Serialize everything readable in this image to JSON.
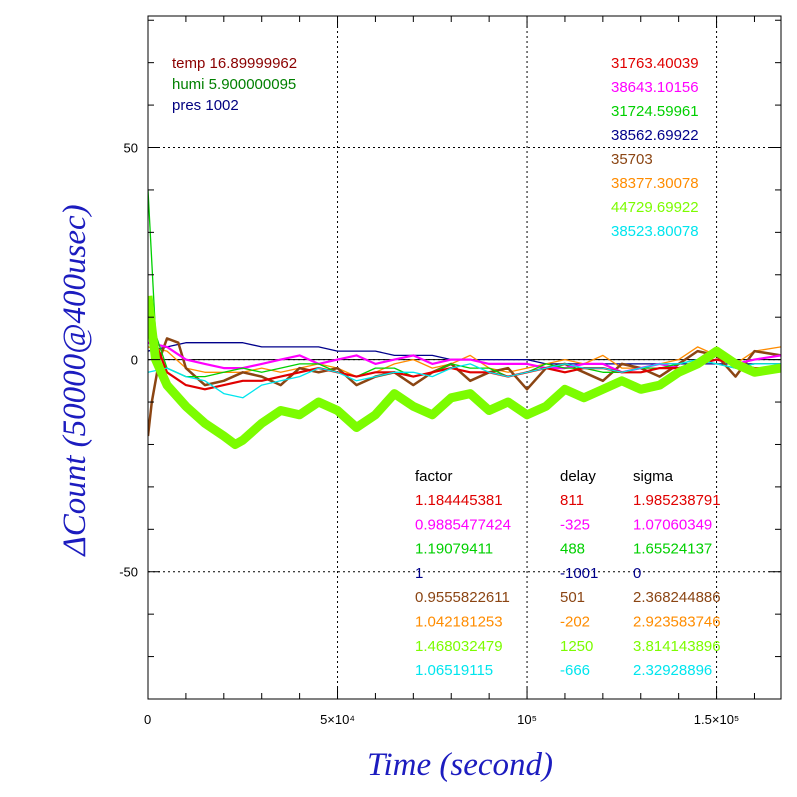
{
  "chart_data": {
    "type": "line",
    "xlabel": "Time (second)",
    "ylabel": "ΔCount (50000@400usec)",
    "xlim": [
      0,
      167000
    ],
    "ylim": [
      -80,
      81
    ],
    "x_ticks": [
      {
        "value": 0,
        "label": "0"
      },
      {
        "value": 50000,
        "label": "5×10⁴"
      },
      {
        "value": 100000,
        "label": "10⁵"
      },
      {
        "value": 150000,
        "label": "1.5×10⁵"
      }
    ],
    "y_ticks": [
      {
        "value": 50,
        "label": "50"
      },
      {
        "value": 0,
        "label": "0"
      },
      {
        "value": -50,
        "label": "-50"
      }
    ],
    "grid": true,
    "environment": [
      {
        "label": "temp",
        "value": "16.89999962",
        "color": "#8b0000"
      },
      {
        "label": "humi",
        "value": "5.900000095",
        "color": "#008000"
      },
      {
        "label": "pres",
        "value": "1002",
        "color": "#00007f"
      }
    ],
    "table_headers": {
      "factor": "factor",
      "delay": "delay",
      "sigma": "sigma"
    },
    "series": [
      {
        "color": "#e00000",
        "mean": "31763.40039",
        "factor": "1.184445381",
        "delay": "811",
        "sigma": "1.985238791",
        "x": [
          0,
          2000,
          5000,
          10000,
          15000,
          20000,
          25000,
          30000,
          35000,
          40000,
          45000,
          50000,
          55000,
          60000,
          65000,
          70000,
          75000,
          80000,
          85000,
          90000,
          95000,
          100000,
          105000,
          110000,
          115000,
          120000,
          125000,
          130000,
          135000,
          140000,
          145000,
          150000,
          155000,
          160000,
          167000
        ],
        "y": [
          10,
          4,
          -3,
          -6,
          -7,
          -6,
          -5,
          -5,
          -4,
          -3,
          -2,
          -3,
          -4,
          -3,
          -3,
          -4,
          -3,
          -2,
          -3,
          -3,
          -4,
          -3,
          -2,
          -3,
          -2,
          -2,
          -3,
          -3,
          -2,
          -2,
          -1,
          0,
          -1,
          -2,
          -2
        ]
      },
      {
        "color": "#ff00ff",
        "mean": "38643.10156",
        "factor": "0.9885477424",
        "delay": "-325",
        "sigma": "1.07060349",
        "x": [
          0,
          5000,
          10000,
          15000,
          20000,
          25000,
          30000,
          35000,
          40000,
          45000,
          50000,
          55000,
          60000,
          65000,
          70000,
          75000,
          80000,
          85000,
          90000,
          95000,
          100000,
          105000,
          110000,
          115000,
          120000,
          125000,
          130000,
          135000,
          140000,
          145000,
          150000,
          155000,
          160000,
          167000
        ],
        "y": [
          4,
          3,
          0,
          -1,
          -2,
          -2,
          -1,
          0,
          1,
          -1,
          0,
          1,
          -1,
          0,
          1,
          -1,
          0,
          0,
          -1,
          -1,
          -1,
          -2,
          -2,
          -1,
          -1,
          -3,
          -2,
          -1,
          -2,
          -1,
          0,
          -1,
          0,
          1
        ]
      },
      {
        "color": "#00d000",
        "mean": "31724.59961",
        "factor": "1.19079411",
        "delay": "488",
        "sigma": "1.65524137",
        "x": [
          0,
          2000,
          5000,
          10000,
          15000,
          20000,
          25000,
          30000,
          35000,
          40000,
          45000,
          50000,
          55000,
          60000,
          65000,
          70000,
          75000,
          80000,
          85000,
          90000,
          95000,
          100000,
          105000,
          110000,
          115000,
          120000,
          125000,
          130000,
          135000,
          140000,
          145000,
          150000,
          155000,
          160000,
          167000
        ],
        "y": [
          40,
          6,
          -2,
          -4,
          -4,
          -3,
          -2,
          -3,
          -2,
          -1,
          -1,
          -3,
          -4,
          -2,
          -2,
          -4,
          -3,
          -1,
          -2,
          -2,
          -4,
          -3,
          -1,
          -2,
          -2,
          -3,
          -3,
          -2,
          -2,
          -1,
          0,
          -1,
          -2,
          -1,
          -1
        ]
      },
      {
        "color": "#00008b",
        "mean": "38562.69922",
        "factor": "1",
        "delay": "-1001",
        "sigma": "0",
        "x": [
          0,
          5000,
          10000,
          15000,
          20000,
          25000,
          30000,
          35000,
          40000,
          45000,
          50000,
          55000,
          60000,
          65000,
          70000,
          75000,
          80000,
          85000,
          90000,
          95000,
          100000,
          105000,
          110000,
          115000,
          120000,
          125000,
          130000,
          135000,
          140000,
          145000,
          150000,
          155000,
          160000,
          167000
        ],
        "y": [
          2,
          3,
          4,
          4,
          4,
          4,
          3,
          3,
          3,
          3,
          2,
          2,
          2,
          1,
          1,
          1,
          0,
          0,
          0,
          0,
          0,
          -1,
          -1,
          -1,
          -1,
          -1,
          -1,
          -1,
          -1,
          -1,
          -1,
          -1,
          -1,
          -1
        ]
      },
      {
        "color": "#8b4513",
        "mean": "35703",
        "factor": "0.9555822611",
        "delay": "501",
        "sigma": "2.368244886",
        "x": [
          0,
          1000,
          3000,
          5000,
          8000,
          10000,
          15000,
          20000,
          25000,
          30000,
          35000,
          40000,
          45000,
          50000,
          55000,
          60000,
          65000,
          70000,
          75000,
          80000,
          85000,
          90000,
          95000,
          100000,
          105000,
          110000,
          115000,
          120000,
          125000,
          130000,
          135000,
          140000,
          145000,
          150000,
          155000,
          160000,
          167000
        ],
        "y": [
          -18,
          -10,
          0,
          5,
          4,
          -2,
          -6,
          -5,
          -3,
          -4,
          -6,
          -2,
          -3,
          -2,
          -6,
          -4,
          -3,
          -6,
          -3,
          -1,
          -5,
          -3,
          -2,
          -7,
          -2,
          -1,
          -3,
          -5,
          -1,
          -2,
          -4,
          -1,
          2,
          1,
          -4,
          2,
          1
        ]
      },
      {
        "color": "#ff8c00",
        "mean": "38377.30078",
        "factor": "1.042181253",
        "delay": "-202",
        "sigma": "2.923583746",
        "x": [
          0,
          5000,
          10000,
          15000,
          20000,
          25000,
          30000,
          35000,
          40000,
          45000,
          50000,
          55000,
          60000,
          65000,
          70000,
          75000,
          80000,
          85000,
          90000,
          95000,
          100000,
          105000,
          110000,
          115000,
          120000,
          125000,
          130000,
          135000,
          140000,
          145000,
          150000,
          155000,
          160000,
          167000
        ],
        "y": [
          3,
          2,
          -2,
          -3,
          -3,
          -3,
          -2,
          -3,
          -2,
          -1,
          -2,
          -4,
          -3,
          -1,
          0,
          -2,
          -1,
          1,
          -2,
          -3,
          -2,
          -1,
          0,
          -1,
          1,
          -2,
          -2,
          -1,
          0,
          3,
          1,
          -1,
          2,
          3
        ]
      },
      {
        "color": "#7cfc00",
        "mean": "44729.69922",
        "factor": "1.468032479",
        "delay": "1250",
        "sigma": "3.814143896",
        "x": [
          0,
          2000,
          5000,
          10000,
          15000,
          20000,
          23000,
          25000,
          30000,
          35000,
          40000,
          45000,
          50000,
          55000,
          60000,
          65000,
          70000,
          75000,
          80000,
          85000,
          90000,
          95000,
          100000,
          105000,
          110000,
          115000,
          120000,
          125000,
          130000,
          135000,
          140000,
          145000,
          150000,
          155000,
          160000,
          167000
        ],
        "y": [
          15,
          0,
          -6,
          -11,
          -15,
          -18,
          -20,
          -19,
          -15,
          -12,
          -13,
          -10,
          -12,
          -16,
          -13,
          -8,
          -11,
          -13,
          -9,
          -8,
          -12,
          -10,
          -13,
          -11,
          -7,
          -9,
          -7,
          -5,
          -7,
          -6,
          -3,
          -1,
          2,
          -1,
          -3,
          -2
        ]
      },
      {
        "color": "#00e5ee",
        "mean": "38523.80078",
        "factor": "1.06519115",
        "delay": "-666",
        "sigma": "2.32928896",
        "x": [
          0,
          5000,
          10000,
          15000,
          20000,
          25000,
          30000,
          35000,
          40000,
          45000,
          50000,
          55000,
          60000,
          65000,
          70000,
          75000,
          80000,
          85000,
          90000,
          95000,
          100000,
          105000,
          110000,
          115000,
          120000,
          125000,
          130000,
          135000,
          140000,
          145000,
          150000,
          155000,
          160000,
          167000
        ],
        "y": [
          -3,
          -2,
          -4,
          -5,
          -8,
          -9,
          -6,
          -5,
          -4,
          -2,
          -3,
          -5,
          -4,
          -3,
          -3,
          -4,
          -2,
          -1,
          -3,
          -4,
          -3,
          -2,
          -1,
          -2,
          -2,
          -3,
          -2,
          -1,
          -1,
          0,
          -1,
          -2,
          -1,
          -1
        ]
      }
    ]
  }
}
